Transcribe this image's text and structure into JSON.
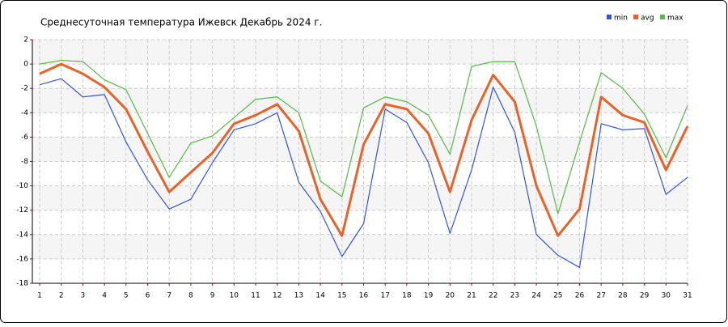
{
  "chart_data": {
    "type": "line",
    "title": "Среднесуточная температура Ижевск  Декабрь 2024 г.",
    "x": [
      1,
      2,
      3,
      4,
      5,
      6,
      7,
      8,
      9,
      10,
      11,
      12,
      13,
      14,
      15,
      16,
      17,
      18,
      19,
      20,
      21,
      22,
      23,
      24,
      25,
      26,
      27,
      28,
      29,
      30,
      31
    ],
    "xlim": [
      1,
      31
    ],
    "ylim": [
      -18,
      2
    ],
    "yticks": [
      2,
      0,
      -2,
      -4,
      -6,
      -8,
      -10,
      -12,
      -14,
      -16,
      -18
    ],
    "grid": true,
    "legend": "top-right",
    "series": [
      {
        "name": "min",
        "color": "#3355dd",
        "values": [
          -1.7,
          -1.2,
          -2.7,
          -2.5,
          -6.4,
          -9.5,
          -11.9,
          -11.1,
          -8.1,
          -5.4,
          -4.9,
          -4,
          -9.7,
          -12.1,
          -15.8,
          -13.1,
          -3.7,
          -4.8,
          -8.1,
          -13.9,
          -8.7,
          -1.9,
          -5.6,
          -14,
          -15.7,
          -16.7,
          -4.9,
          -5.4,
          -5.3,
          -10.7,
          -9.3
        ]
      },
      {
        "name": "avg",
        "color": "#e8632a",
        "values": [
          -0.8,
          0,
          -0.8,
          -1.9,
          -3.7,
          -7.2,
          -10.5,
          -8.9,
          -7.3,
          -4.9,
          -4.2,
          -3.3,
          -5.5,
          -11.1,
          -14.1,
          -6.6,
          -3.3,
          -3.7,
          -5.7,
          -10.5,
          -4.6,
          -0.9,
          -3.1,
          -10,
          -14.1,
          -11.9,
          -2.7,
          -4.2,
          -4.8,
          -8.7,
          -5.1
        ]
      },
      {
        "name": "max",
        "color": "#55bb44",
        "values": [
          0,
          0.3,
          0.2,
          -1.3,
          -2.1,
          -5.7,
          -9.3,
          -6.5,
          -5.9,
          -4.4,
          -2.9,
          -2.7,
          -4,
          -9.6,
          -10.9,
          -3.6,
          -2.7,
          -3.1,
          -4.2,
          -7.4,
          -0.2,
          0.2,
          0.2,
          -5.1,
          -12.3,
          -6.4,
          -0.7,
          -2,
          -4.1,
          -7.7,
          -3.4
        ]
      }
    ]
  }
}
